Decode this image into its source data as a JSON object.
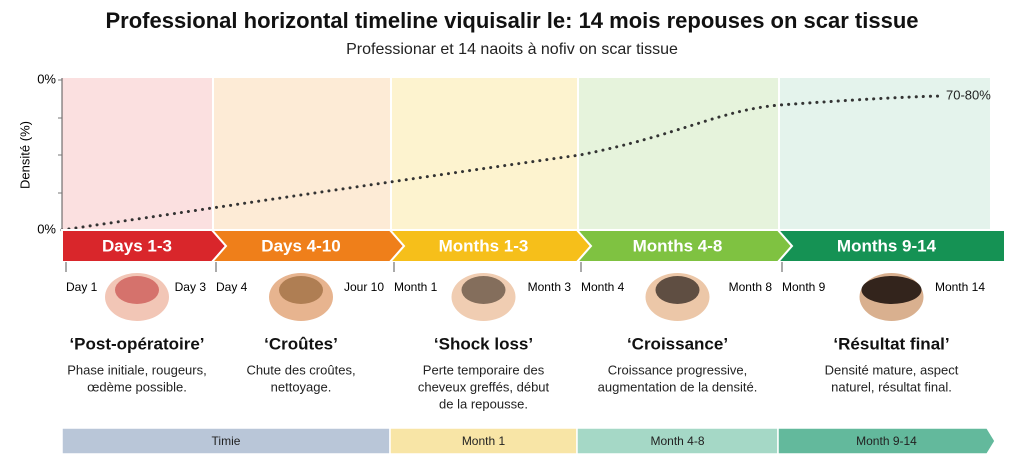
{
  "title": "Professional horizontal timeline viquisalir le: 14 mois repouses on scar tissue",
  "subtitle": "Professionar et 14 naoits à nofiv on scar tissue",
  "y_axis": {
    "label": "Densité (%)",
    "top_label": "0%",
    "bottom_label": "0%"
  },
  "end_label": "70-80%",
  "phases": [
    {
      "label": "Days 1-3",
      "start": "Day 1",
      "end": "Day 3",
      "name": "‘Post-opératoire’",
      "description": [
        "Phase initiale, rougeurs,",
        "œdème possible."
      ]
    },
    {
      "label": "Days 4-10",
      "start": "Day 4",
      "end": "Jour 10",
      "name": "‘Croûtes’",
      "description": [
        "Chute des croûtes,",
        "nettoyage."
      ]
    },
    {
      "label": "Months 1-3",
      "start": "Month 1",
      "end": "Month 3",
      "name": "‘Shock loss’",
      "description": [
        "Perte temporaire des",
        "cheveux greffés, début",
        "de la repousse."
      ]
    },
    {
      "label": "Months 4-8",
      "start": "Month 4",
      "end": "Month 8",
      "name": "‘Croissance’",
      "description": [
        "Croissance progressive,",
        "augmentation de la densité."
      ]
    },
    {
      "label": "Months 9-14",
      "start": "Month 9",
      "end": "Month 14",
      "name": "‘Résultat final’",
      "description": [
        "Densité mature, aspect",
        "naturel, résultat final."
      ]
    }
  ],
  "bottom_bar": [
    "Timie",
    "Month 1",
    "Month 4-8",
    "Month 9-14"
  ]
}
